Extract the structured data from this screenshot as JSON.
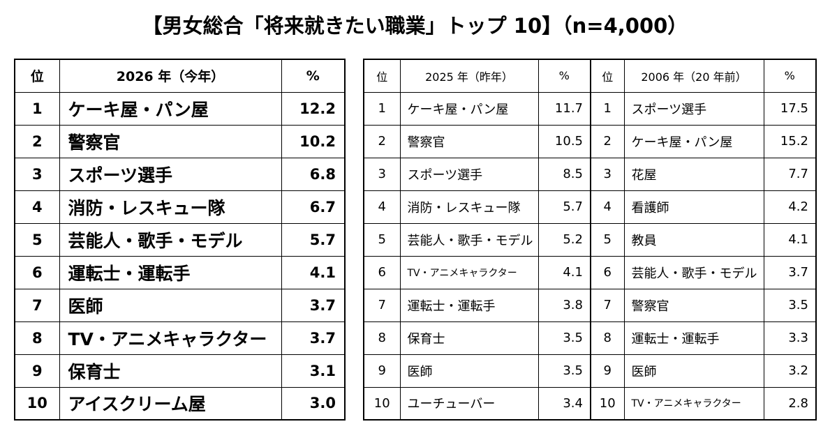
{
  "title": "【男女総合「将来就きたい職業」トップ 10】（n=4,000）",
  "current": {
    "headers": {
      "rank": "位",
      "year": "2026 年（今年）",
      "percent": "%"
    },
    "rows": [
      {
        "rank": "1",
        "job": "ケーキ屋・パン屋",
        "percent": "12.2"
      },
      {
        "rank": "2",
        "job": "警察官",
        "percent": "10.2"
      },
      {
        "rank": "3",
        "job": "スポーツ選手",
        "percent": "6.8"
      },
      {
        "rank": "4",
        "job": "消防・レスキュー隊",
        "percent": "6.7"
      },
      {
        "rank": "5",
        "job": "芸能人・歌手・モデル",
        "percent": "5.7"
      },
      {
        "rank": "6",
        "job": "運転士・運転手",
        "percent": "4.1"
      },
      {
        "rank": "7",
        "job": "医師",
        "percent": "3.7"
      },
      {
        "rank": "8",
        "job": "TV・アニメキャラクター",
        "percent": "3.7"
      },
      {
        "rank": "9",
        "job": "保育士",
        "percent": "3.1"
      },
      {
        "rank": "10",
        "job": "アイスクリーム屋",
        "percent": "3.0"
      }
    ]
  },
  "last_year": {
    "headers": {
      "rank": "位",
      "year": "2025 年（昨年）",
      "percent": "%"
    },
    "rows": [
      {
        "rank": "1",
        "job": "ケーキ屋・パン屋",
        "percent": "11.7"
      },
      {
        "rank": "2",
        "job": "警察官",
        "percent": "10.5"
      },
      {
        "rank": "3",
        "job": "スポーツ選手",
        "percent": "8.5"
      },
      {
        "rank": "4",
        "job": "消防・レスキュー隊",
        "percent": "5.7"
      },
      {
        "rank": "5",
        "job": "芸能人・歌手・モデル",
        "percent": "5.2"
      },
      {
        "rank": "6",
        "job": "TV・アニメキャラクター",
        "percent": "4.1"
      },
      {
        "rank": "7",
        "job": "運転士・運転手",
        "percent": "3.8"
      },
      {
        "rank": "8",
        "job": "保育士",
        "percent": "3.5"
      },
      {
        "rank": "9",
        "job": "医師",
        "percent": "3.5"
      },
      {
        "rank": "10",
        "job": "ユーチューバー",
        "percent": "3.4"
      }
    ]
  },
  "twenty_years_ago": {
    "headers": {
      "rank": "位",
      "year": "2006 年（20 年前）",
      "percent": "%"
    },
    "rows": [
      {
        "rank": "1",
        "job": "スポーツ選手",
        "percent": "17.5"
      },
      {
        "rank": "2",
        "job": "ケーキ屋・パン屋",
        "percent": "15.2"
      },
      {
        "rank": "3",
        "job": "花屋",
        "percent": "7.7"
      },
      {
        "rank": "4",
        "job": "看護師",
        "percent": "4.2"
      },
      {
        "rank": "5",
        "job": "教員",
        "percent": "4.1"
      },
      {
        "rank": "6",
        "job": "芸能人・歌手・モデル",
        "percent": "3.7"
      },
      {
        "rank": "7",
        "job": "警察官",
        "percent": "3.5"
      },
      {
        "rank": "8",
        "job": "運転士・運転手",
        "percent": "3.3"
      },
      {
        "rank": "9",
        "job": "医師",
        "percent": "3.2"
      },
      {
        "rank": "10",
        "job": "TV・アニメキャラクター",
        "percent": "2.8"
      }
    ]
  }
}
